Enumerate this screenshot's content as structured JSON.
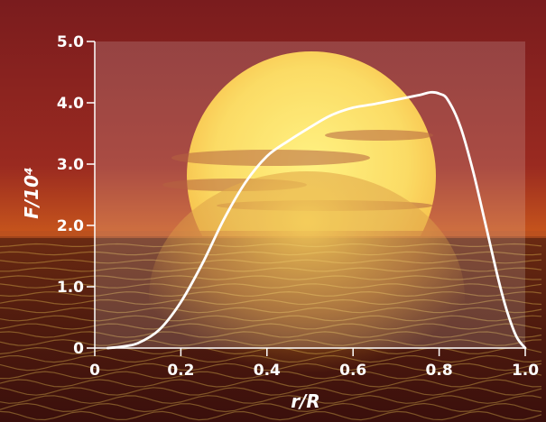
{
  "colors": {
    "sky_top": "#7a1c1e",
    "sky_mid": "#9a2a20",
    "horizon": "#c8561c",
    "sun_core": "#ffef6a",
    "sun_edge": "#f5b52a",
    "sea_dark": "#3a0f0c",
    "sea_glint": "#f2c23a",
    "plot_panel": "#ffffff",
    "axis": "#ffffff",
    "curve": "#ffffff"
  },
  "chart_data": {
    "type": "line",
    "title": "",
    "xlabel": "r/R",
    "ylabel": "F/10⁴",
    "xlim": [
      0,
      1.0
    ],
    "ylim": [
      0,
      5.0
    ],
    "grid": false,
    "legend": "none",
    "x_ticks": [
      0,
      0.2,
      0.4,
      0.6,
      0.8,
      1.0
    ],
    "x_tick_labels": [
      "0",
      "0.2",
      "0.4",
      "0.6",
      "0.8",
      "1.0"
    ],
    "y_ticks": [
      0,
      1.0,
      2.0,
      3.0,
      4.0,
      5.0
    ],
    "y_tick_labels": [
      "0",
      "1.0",
      "2.0",
      "3.0",
      "4.0",
      "5.0"
    ],
    "series": [
      {
        "x": [
          0.03,
          0.06,
          0.1,
          0.15,
          0.2,
          0.25,
          0.3,
          0.35,
          0.4,
          0.45,
          0.5,
          0.55,
          0.6,
          0.65,
          0.7,
          0.75,
          0.78,
          0.8,
          0.82,
          0.85,
          0.88,
          0.91,
          0.94,
          0.96,
          0.98,
          1.0
        ],
        "y": [
          0.0,
          0.02,
          0.08,
          0.3,
          0.75,
          1.38,
          2.1,
          2.7,
          3.13,
          3.38,
          3.6,
          3.8,
          3.92,
          3.98,
          4.05,
          4.12,
          4.17,
          4.15,
          4.05,
          3.6,
          2.85,
          1.95,
          1.05,
          0.55,
          0.18,
          0.0
        ]
      }
    ]
  }
}
